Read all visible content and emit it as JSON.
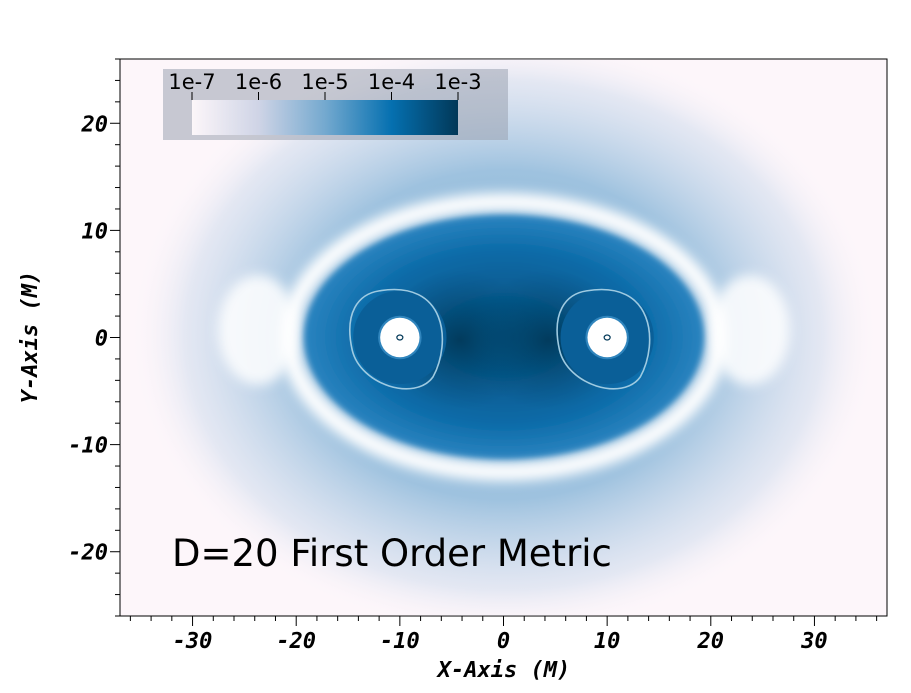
{
  "chart_data": {
    "type": "heatmap",
    "xlabel": "X-Axis (M)",
    "ylabel": "Y-Axis (M)",
    "xlim": [
      -37,
      37
    ],
    "ylim": [
      -26,
      26
    ],
    "x_ticks": [
      -30,
      -20,
      -10,
      0,
      10,
      20,
      30
    ],
    "y_ticks": [
      -20,
      -10,
      0,
      10,
      20
    ],
    "x_tick_labels": [
      "-30",
      "-20",
      "-10",
      "0",
      "10",
      "20",
      "30"
    ],
    "y_tick_labels": [
      "-20",
      "-10",
      "0",
      "10",
      "20"
    ],
    "annotation": "D=20 First Order Metric",
    "colorbar": {
      "scale": "log",
      "ticks": [
        1e-07,
        1e-06,
        1e-05,
        0.0001,
        0.001
      ],
      "tick_labels": [
        "1e-7",
        "1e-6",
        "1e-5",
        "1e-4",
        "1e-3"
      ],
      "colors": [
        "#fcf6f9",
        "#cfd4e6",
        "#74a9cf",
        "#0570b0",
        "#023858"
      ],
      "placement": "top-left"
    },
    "sources": [
      {
        "x": -10,
        "y": 0
      },
      {
        "x": 10,
        "y": 0
      }
    ],
    "grid": false
  }
}
